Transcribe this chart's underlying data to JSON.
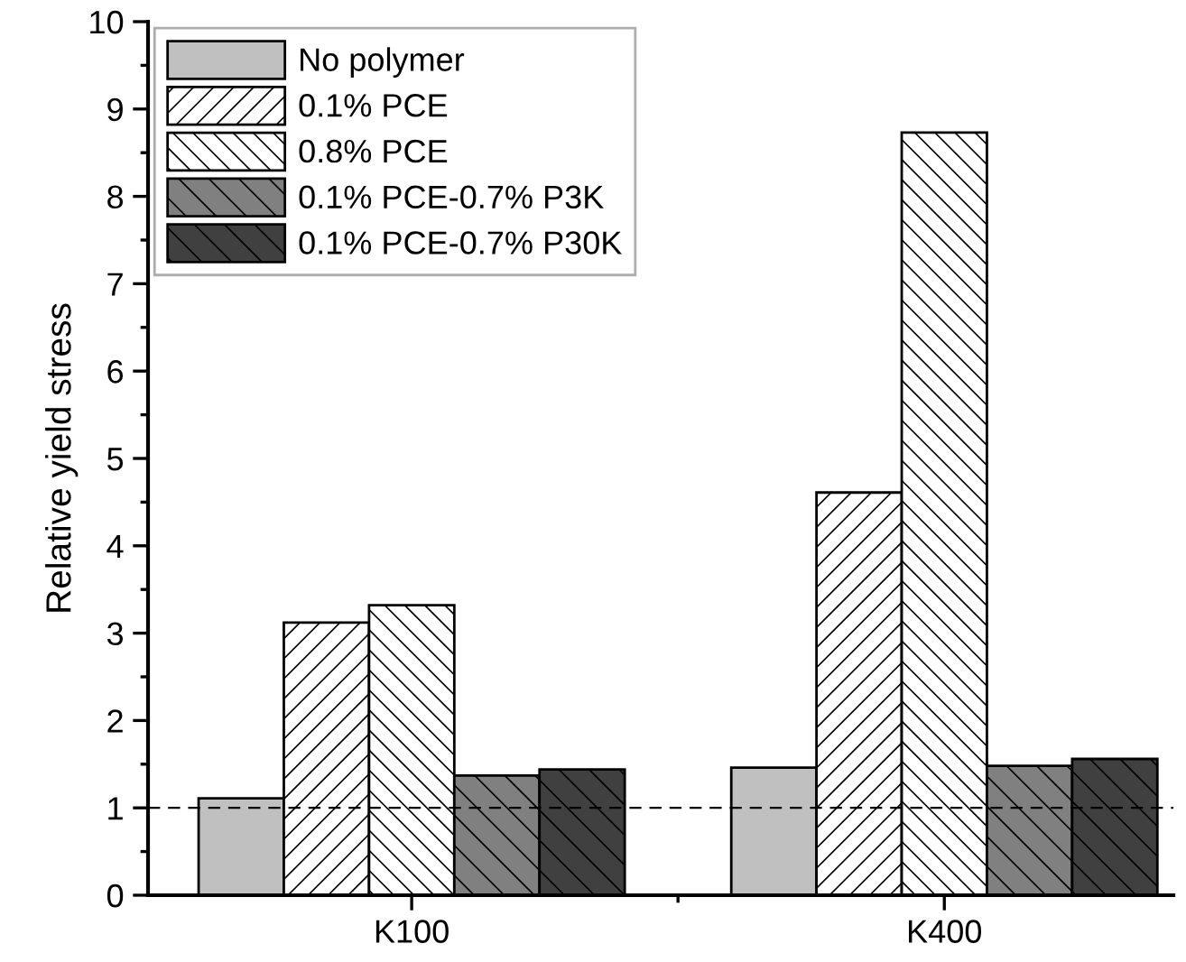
{
  "chart_data": {
    "type": "bar",
    "ylabel": "Relative yield stress",
    "categories": [
      "K100",
      "K400"
    ],
    "series": [
      {
        "name": "No polymer",
        "color": "#c0c0c0",
        "values": [
          1.11,
          1.46
        ]
      },
      {
        "name": "0.1% PCE",
        "color": "#ffffff",
        "values": [
          3.12,
          4.61
        ]
      },
      {
        "name": "0.8% PCE",
        "color": "#ffffff",
        "values": [
          3.32,
          8.73
        ]
      },
      {
        "name": "0.1% PCE-0.7% P3K",
        "color": "#808080",
        "values": [
          1.37,
          1.48
        ]
      },
      {
        "name": "0.1% PCE-0.7% P30K",
        "color": "#404040",
        "values": [
          1.44,
          1.56
        ]
      }
    ],
    "ylim": [
      0,
      10
    ],
    "yticks": [
      0,
      1,
      2,
      3,
      4,
      5,
      6,
      7,
      8,
      9,
      10
    ],
    "ref_lines": [
      {
        "axis": "y",
        "value": 1,
        "line_style": "dashed",
        "color": "#000000"
      }
    ],
    "legend": "top left",
    "grid": false
  }
}
